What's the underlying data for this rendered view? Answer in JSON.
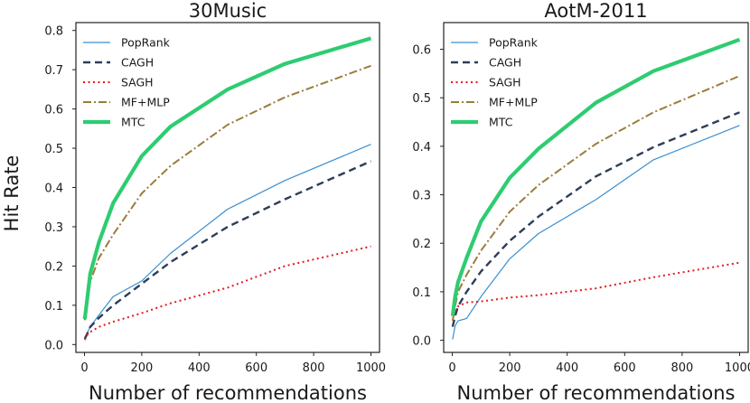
{
  "figure": {
    "ylabel": "Hit Rate",
    "colors": {
      "PopRank": "#3a8fd0",
      "CAGH": "#2c3e5a",
      "SAGH": "#e41a1c",
      "MF+MLP": "#9a7d3c",
      "MTC": "#2ecc71"
    }
  },
  "chart_data": [
    {
      "type": "line",
      "title": "30Music",
      "xlabel": "Number of recommendations",
      "ylabel": "Hit Rate",
      "xlim": [
        -30,
        1030
      ],
      "ylim": [
        -0.02,
        0.82
      ],
      "xticks": [
        0,
        200,
        400,
        600,
        800,
        1000
      ],
      "xtick_labels": [
        "0",
        "200",
        "400",
        "600",
        "800",
        "1000"
      ],
      "yticks": [
        0.0,
        0.1,
        0.2,
        0.3,
        0.4,
        0.5,
        0.6,
        0.7,
        0.8
      ],
      "ytick_labels": [
        "0.0",
        "0.1",
        "0.2",
        "0.3",
        "0.4",
        "0.5",
        "0.6",
        "0.7",
        "0.8"
      ],
      "legend": "upper-left",
      "series": [
        {
          "name": "PopRank",
          "x": [
            1,
            10,
            20,
            50,
            100,
            200,
            300,
            500,
            700,
            1000
          ],
          "y": [
            0.012,
            0.03,
            0.045,
            0.075,
            0.122,
            0.162,
            0.232,
            0.345,
            0.418,
            0.51
          ]
        },
        {
          "name": "CAGH",
          "x": [
            1,
            10,
            20,
            50,
            100,
            200,
            300,
            500,
            700,
            1000
          ],
          "y": [
            0.015,
            0.028,
            0.045,
            0.068,
            0.1,
            0.155,
            0.21,
            0.3,
            0.37,
            0.467
          ]
        },
        {
          "name": "SAGH",
          "x": [
            1,
            10,
            20,
            50,
            100,
            200,
            300,
            500,
            700,
            1000
          ],
          "y": [
            0.012,
            0.025,
            0.032,
            0.045,
            0.058,
            0.08,
            0.105,
            0.145,
            0.2,
            0.25
          ]
        },
        {
          "name": "MF+MLP",
          "x": [
            1,
            10,
            20,
            50,
            100,
            200,
            300,
            500,
            700,
            1000
          ],
          "y": [
            0.062,
            0.11,
            0.16,
            0.22,
            0.28,
            0.385,
            0.455,
            0.56,
            0.63,
            0.71
          ]
        },
        {
          "name": "MTC",
          "x": [
            1,
            10,
            20,
            50,
            100,
            200,
            300,
            500,
            700,
            1000
          ],
          "y": [
            0.065,
            0.12,
            0.18,
            0.26,
            0.36,
            0.48,
            0.555,
            0.65,
            0.715,
            0.78
          ]
        }
      ]
    },
    {
      "type": "line",
      "title": "AotM-2011",
      "xlabel": "Number of recommendations",
      "ylabel": "",
      "xlim": [
        -30,
        1030
      ],
      "ylim": [
        -0.025,
        0.655
      ],
      "xticks": [
        0,
        200,
        400,
        600,
        800,
        1000
      ],
      "xtick_labels": [
        "0",
        "200",
        "400",
        "600",
        "800",
        "1000"
      ],
      "yticks": [
        0.0,
        0.1,
        0.2,
        0.3,
        0.4,
        0.5,
        0.6
      ],
      "ytick_labels": [
        "0.0",
        "0.1",
        "0.2",
        "0.3",
        "0.4",
        "0.5",
        "0.6"
      ],
      "legend": "upper-left",
      "series": [
        {
          "name": "PopRank",
          "x": [
            1,
            10,
            20,
            50,
            100,
            200,
            300,
            500,
            700,
            1000
          ],
          "y": [
            0.002,
            0.03,
            0.04,
            0.045,
            0.09,
            0.168,
            0.22,
            0.29,
            0.372,
            0.443
          ]
        },
        {
          "name": "CAGH",
          "x": [
            1,
            10,
            20,
            50,
            100,
            200,
            300,
            500,
            700,
            1000
          ],
          "y": [
            0.028,
            0.05,
            0.07,
            0.1,
            0.142,
            0.205,
            0.255,
            0.338,
            0.398,
            0.47
          ]
        },
        {
          "name": "SAGH",
          "x": [
            1,
            10,
            20,
            50,
            100,
            200,
            300,
            500,
            700,
            1000
          ],
          "y": [
            0.04,
            0.06,
            0.07,
            0.078,
            0.08,
            0.088,
            0.093,
            0.107,
            0.13,
            0.16
          ]
        },
        {
          "name": "MF+MLP",
          "x": [
            1,
            10,
            20,
            50,
            100,
            200,
            300,
            500,
            700,
            1000
          ],
          "y": [
            0.04,
            0.07,
            0.1,
            0.135,
            0.185,
            0.265,
            0.32,
            0.405,
            0.47,
            0.545
          ]
        },
        {
          "name": "MTC",
          "x": [
            1,
            10,
            20,
            50,
            100,
            200,
            300,
            500,
            700,
            1000
          ],
          "y": [
            0.05,
            0.09,
            0.12,
            0.17,
            0.245,
            0.335,
            0.395,
            0.49,
            0.555,
            0.62
          ]
        }
      ]
    }
  ]
}
